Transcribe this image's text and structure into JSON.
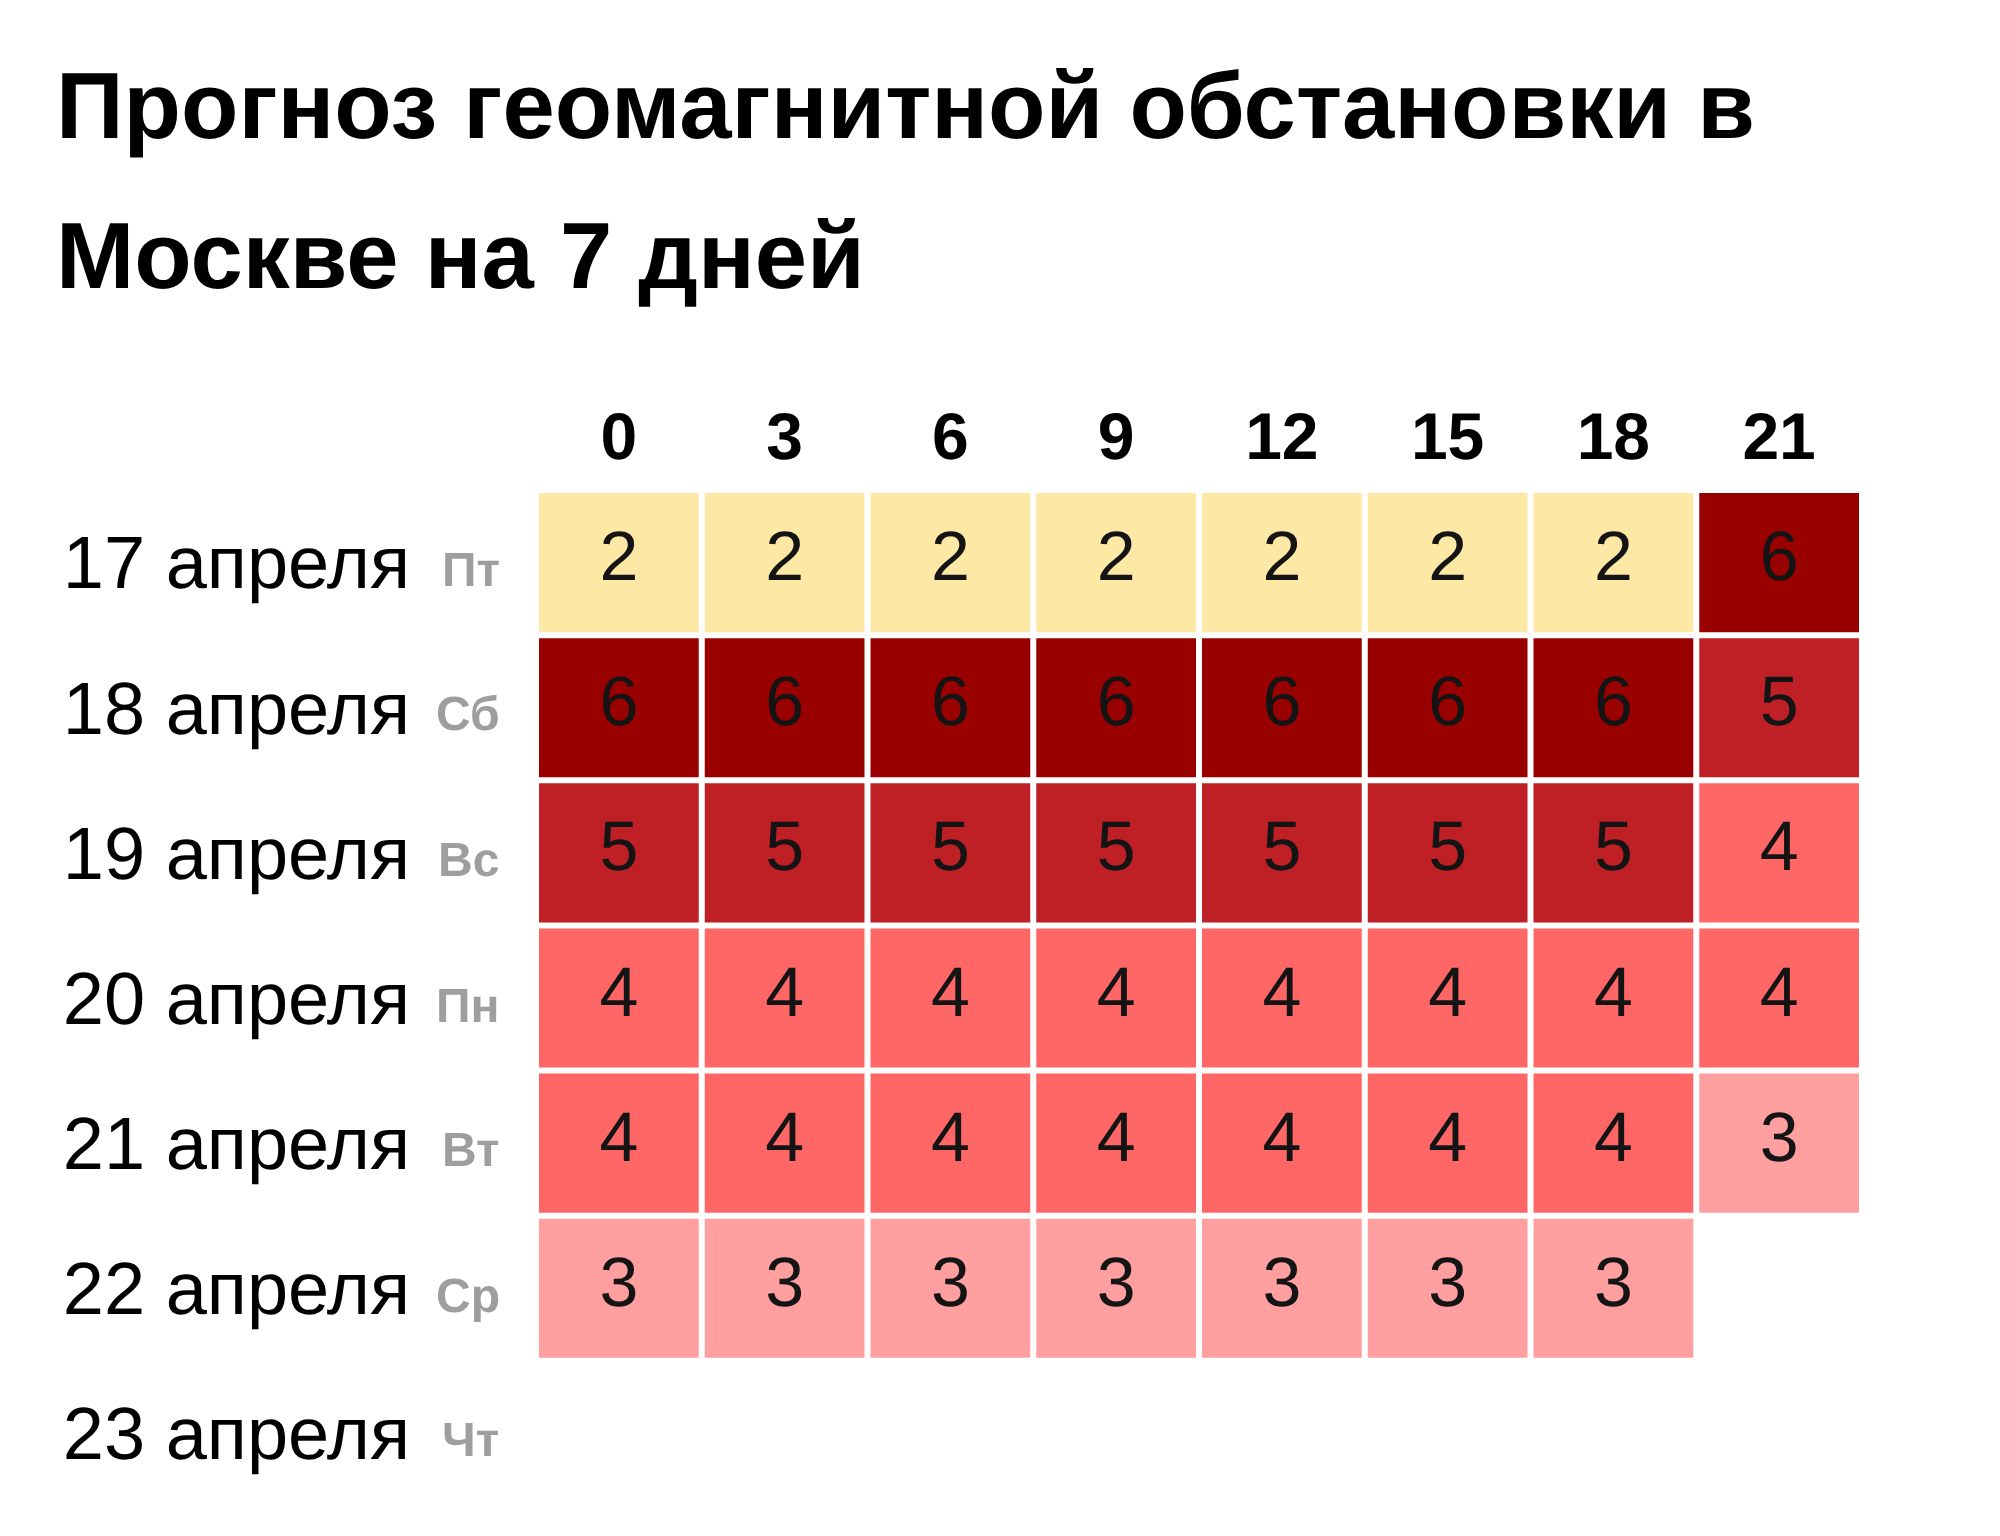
{
  "chart_data": {
    "type": "heatmap",
    "title": "Прогноз геомагнитной обстановки в Москве на 7 дней",
    "categories": [
      "0",
      "3",
      "6",
      "9",
      "12",
      "15",
      "18",
      "21"
    ],
    "y_categories": [
      "17 апреля",
      "18 апреля",
      "19 апреля",
      "20 апреля",
      "21 апреля",
      "22 апреля",
      "23 апреля"
    ],
    "y2_categories": [
      "Пт",
      "Сб",
      "Вс",
      "Пн",
      "Вт",
      "Ср",
      "Чт"
    ],
    "cells": [
      [
        2,
        2,
        2,
        2,
        2,
        2,
        2,
        6
      ],
      [
        6,
        6,
        6,
        6,
        6,
        6,
        6,
        5
      ],
      [
        5,
        5,
        5,
        5,
        5,
        5,
        5,
        4
      ],
      [
        4,
        4,
        4,
        4,
        4,
        4,
        4,
        4
      ],
      [
        4,
        4,
        4,
        4,
        4,
        4,
        4,
        3
      ],
      [
        3,
        3,
        3,
        3,
        3,
        3,
        3,
        null
      ],
      [
        null,
        null,
        null,
        null,
        null,
        null,
        null,
        null
      ]
    ],
    "colors": [
      [
        "#fde9a5",
        "#fde9a5",
        "#fde9a5",
        "#fde9a5",
        "#fde9a5",
        "#fde9a5",
        "#fde9a5",
        "#990000"
      ],
      [
        "#990000",
        "#990000",
        "#990000",
        "#990000",
        "#990000",
        "#990000",
        "#990000",
        "#be2026"
      ],
      [
        "#be2026",
        "#be2026",
        "#be2026",
        "#be2026",
        "#be2026",
        "#be2026",
        "#be2026",
        "#ff6666"
      ],
      [
        "#ff6666",
        "#ff6666",
        "#ff6666",
        "#ff6666",
        "#ff6666",
        "#ff6666",
        "#ff6666",
        "#ff6666"
      ],
      [
        "#ff6666",
        "#ff6666",
        "#ff6666",
        "#ff6666",
        "#ff6666",
        "#ff6666",
        "#ff6666",
        "#ff9f9f"
      ],
      [
        "#ff9f9f",
        "#ff9f9f",
        "#ff9f9f",
        "#ff9f9f",
        "#ff9f9f",
        "#ff9f9f",
        "#ff9f9f",
        null
      ],
      [
        null,
        null,
        null,
        null,
        null,
        null,
        null,
        null
      ]
    ],
    "data_labels": true
  }
}
